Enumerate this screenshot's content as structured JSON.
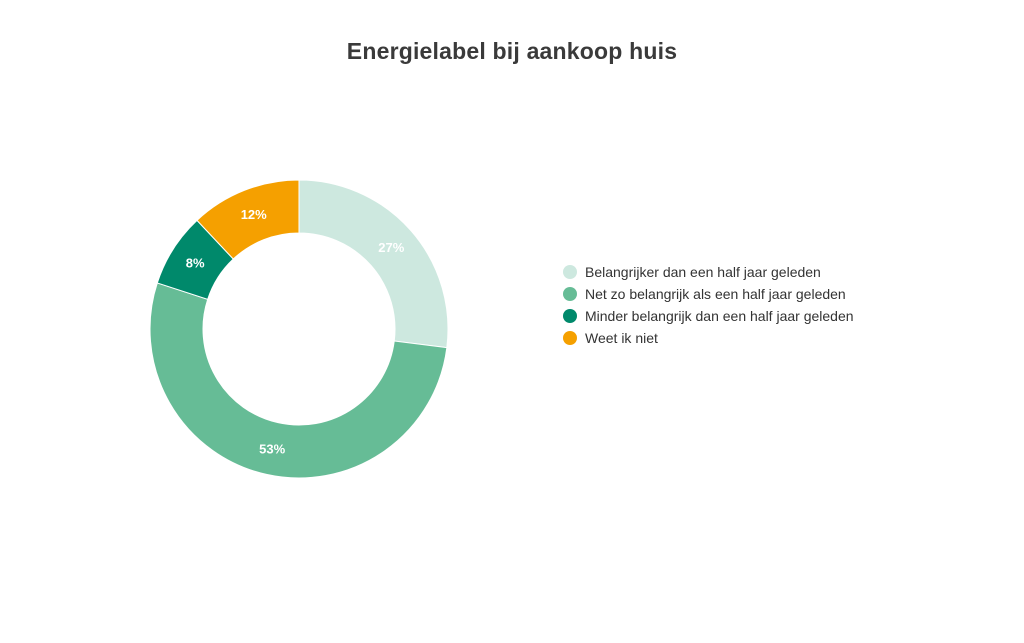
{
  "chart_data": {
    "type": "pie",
    "title": "Energielabel bij aankoop huis",
    "categories": [
      "Belangrijker dan een half jaar geleden",
      "Net zo belangrijk als een half jaar geleden",
      "Minder belangrijk dan een half jaar geleden",
      "Weet ik niet"
    ],
    "values": [
      27,
      53,
      8,
      12
    ],
    "data_labels": [
      "27%",
      "53%",
      "8%",
      "12%"
    ],
    "colors": [
      "#cde8df",
      "#66bc96",
      "#00896b",
      "#f5a000"
    ],
    "label_colors": [
      "#66bc96",
      "#ffffff",
      "#ffffff",
      "#ffffff"
    ],
    "donut": true,
    "start_angle_deg": 0,
    "legend_position": "right"
  }
}
